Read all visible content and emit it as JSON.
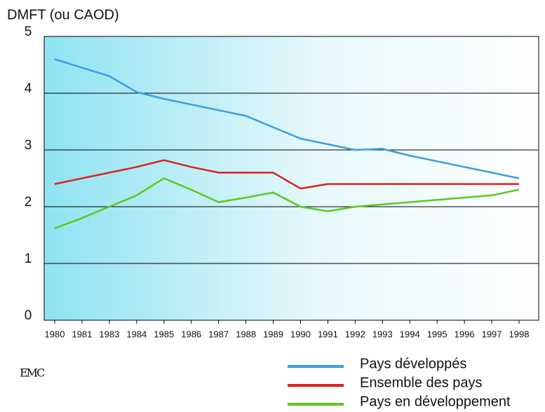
{
  "chart_data": {
    "type": "line",
    "y_label": "DMFT (ou CAOD)",
    "categories": [
      "1980",
      "1981",
      "1983",
      "1984",
      "1985",
      "1986",
      "1987",
      "1988",
      "1989",
      "1990",
      "1991",
      "1992",
      "1993",
      "1994",
      "1995",
      "1996",
      "1997",
      "1998"
    ],
    "series": [
      {
        "name": "Pays développés",
        "color": "#3a9ee0",
        "values": [
          4.6,
          4.45,
          4.3,
          4.02,
          3.9,
          3.8,
          3.7,
          3.6,
          3.4,
          3.2,
          3.1,
          3.0,
          3.02,
          2.9,
          2.8,
          2.7,
          2.6,
          2.5
        ]
      },
      {
        "name": "Ensemble des pays",
        "color": "#e0201a",
        "values": [
          2.4,
          2.5,
          2.6,
          2.7,
          2.82,
          2.7,
          2.6,
          2.6,
          2.6,
          2.32,
          2.4,
          2.4,
          2.4,
          2.4,
          2.4,
          2.4,
          2.4,
          2.4
        ]
      },
      {
        "name": "Pays en développement",
        "color": "#5cc81e",
        "values": [
          1.62,
          1.8,
          2.0,
          2.2,
          2.5,
          2.3,
          2.08,
          2.16,
          2.25,
          2.0,
          1.92,
          2.0,
          2.04,
          2.08,
          2.12,
          2.16,
          2.2,
          2.3
        ]
      }
    ],
    "ylim": [
      0,
      5
    ],
    "yticks": [
      0,
      1,
      2,
      3,
      4,
      5
    ],
    "grid": true,
    "legend": "bottom-right"
  },
  "logo": "EMC"
}
